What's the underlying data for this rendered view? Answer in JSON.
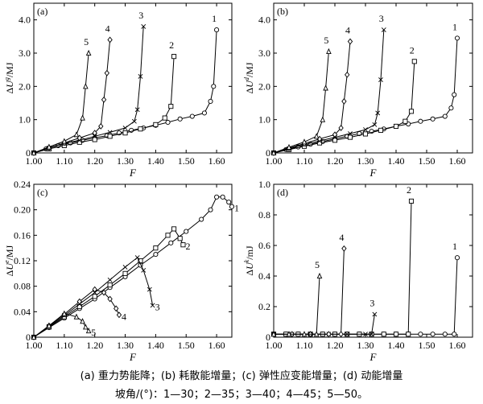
{
  "caption": {
    "line1": "(a) 重力势能降；(b) 耗散能增量；(c) 弹性应变能增量；(d) 动能增量",
    "line2": "坡角/(°)：1—30；2—35；3—40；4—45；5—50。"
  },
  "chart_data": [
    {
      "id": "a",
      "type": "line",
      "panel_label": "(a)",
      "xlabel": "F",
      "ylabel": "ΔU^g/MJ",
      "xlim": [
        1.0,
        1.65
      ],
      "ylim": [
        0,
        4.5
      ],
      "xticks": [
        "1.00",
        "1.10",
        "1.20",
        "1.30",
        "1.40",
        "1.50",
        "1.60"
      ],
      "yticks": [
        "0",
        "1.0",
        "2.0",
        "3.0",
        "4.0"
      ],
      "series": [
        {
          "name": "1",
          "marker": "circle",
          "x": [
            1.0,
            1.04,
            1.08,
            1.12,
            1.16,
            1.2,
            1.24,
            1.28,
            1.32,
            1.36,
            1.4,
            1.44,
            1.48,
            1.52,
            1.56,
            1.58,
            1.59,
            1.6
          ],
          "y": [
            0.0,
            0.12,
            0.22,
            0.3,
            0.38,
            0.45,
            0.52,
            0.6,
            0.68,
            0.75,
            0.83,
            0.92,
            1.02,
            1.1,
            1.2,
            1.55,
            2.0,
            3.7
          ]
        },
        {
          "name": "2",
          "marker": "square",
          "x": [
            1.0,
            1.05,
            1.1,
            1.15,
            1.2,
            1.25,
            1.3,
            1.35,
            1.4,
            1.43,
            1.45,
            1.46
          ],
          "y": [
            0.0,
            0.12,
            0.22,
            0.32,
            0.4,
            0.5,
            0.6,
            0.72,
            0.85,
            1.05,
            1.4,
            2.9
          ]
        },
        {
          "name": "3",
          "marker": "x",
          "x": [
            1.0,
            1.05,
            1.1,
            1.15,
            1.2,
            1.25,
            1.3,
            1.33,
            1.34,
            1.35,
            1.36
          ],
          "y": [
            0.0,
            0.15,
            0.28,
            0.38,
            0.5,
            0.62,
            0.75,
            0.95,
            1.3,
            2.3,
            3.8
          ]
        },
        {
          "name": "4",
          "marker": "diamond",
          "x": [
            1.0,
            1.05,
            1.1,
            1.15,
            1.2,
            1.22,
            1.23,
            1.24,
            1.25
          ],
          "y": [
            0.0,
            0.15,
            0.3,
            0.45,
            0.6,
            0.8,
            1.6,
            2.4,
            3.4
          ]
        },
        {
          "name": "5",
          "marker": "triangle",
          "x": [
            1.0,
            1.05,
            1.1,
            1.14,
            1.16,
            1.17,
            1.18
          ],
          "y": [
            0.0,
            0.18,
            0.35,
            0.55,
            1.05,
            2.0,
            3.0
          ]
        }
      ]
    },
    {
      "id": "b",
      "type": "line",
      "panel_label": "(b)",
      "xlabel": "F",
      "ylabel": "ΔU^d/MJ",
      "xlim": [
        1.0,
        1.65
      ],
      "ylim": [
        0,
        4.5
      ],
      "xticks": [
        "1.00",
        "1.10",
        "1.20",
        "1.30",
        "1.40",
        "1.50",
        "1.60"
      ],
      "yticks": [
        "0",
        "1.0",
        "2.0",
        "3.0",
        "4.0"
      ],
      "series": [
        {
          "name": "1",
          "marker": "circle",
          "x": [
            1.0,
            1.04,
            1.08,
            1.12,
            1.16,
            1.2,
            1.24,
            1.28,
            1.32,
            1.36,
            1.4,
            1.44,
            1.48,
            1.52,
            1.56,
            1.58,
            1.59,
            1.6
          ],
          "y": [
            0.0,
            0.1,
            0.18,
            0.26,
            0.34,
            0.42,
            0.5,
            0.58,
            0.65,
            0.72,
            0.8,
            0.87,
            0.95,
            1.02,
            1.1,
            1.35,
            1.75,
            3.45
          ]
        },
        {
          "name": "2",
          "marker": "square",
          "x": [
            1.0,
            1.05,
            1.1,
            1.15,
            1.2,
            1.25,
            1.3,
            1.35,
            1.4,
            1.43,
            1.45,
            1.46
          ],
          "y": [
            0.0,
            0.1,
            0.2,
            0.3,
            0.38,
            0.47,
            0.57,
            0.68,
            0.8,
            0.95,
            1.25,
            2.75
          ]
        },
        {
          "name": "3",
          "marker": "x",
          "x": [
            1.0,
            1.05,
            1.1,
            1.15,
            1.2,
            1.25,
            1.3,
            1.33,
            1.34,
            1.35,
            1.36
          ],
          "y": [
            0.0,
            0.13,
            0.25,
            0.36,
            0.47,
            0.58,
            0.7,
            0.85,
            1.2,
            2.2,
            3.7
          ]
        },
        {
          "name": "4",
          "marker": "diamond",
          "x": [
            1.0,
            1.05,
            1.1,
            1.15,
            1.2,
            1.22,
            1.23,
            1.24,
            1.25
          ],
          "y": [
            0.0,
            0.14,
            0.28,
            0.42,
            0.55,
            0.75,
            1.55,
            2.35,
            3.35
          ]
        },
        {
          "name": "5",
          "marker": "triangle",
          "x": [
            1.0,
            1.05,
            1.1,
            1.14,
            1.16,
            1.17,
            1.18
          ],
          "y": [
            0.0,
            0.17,
            0.33,
            0.5,
            1.0,
            1.95,
            3.05
          ]
        }
      ]
    },
    {
      "id": "c",
      "type": "line",
      "panel_label": "(c)",
      "xlabel": "F",
      "ylabel": "ΔU^e/MJ",
      "xlim": [
        1.0,
        1.65
      ],
      "ylim": [
        0,
        0.24
      ],
      "xticks": [
        "1.00",
        "1.10",
        "1.20",
        "1.30",
        "1.40",
        "1.50",
        "1.60"
      ],
      "yticks": [
        "0",
        "0.04",
        "0.08",
        "0.12",
        "0.16",
        "0.20",
        "0.24"
      ],
      "series": [
        {
          "name": "1",
          "marker": "circle",
          "x": [
            1.0,
            1.05,
            1.1,
            1.15,
            1.2,
            1.25,
            1.3,
            1.35,
            1.4,
            1.45,
            1.5,
            1.55,
            1.58,
            1.6,
            1.62,
            1.64,
            1.65
          ],
          "y": [
            0.0,
            0.015,
            0.03,
            0.045,
            0.06,
            0.078,
            0.095,
            0.113,
            0.13,
            0.148,
            0.166,
            0.185,
            0.2,
            0.22,
            0.22,
            0.212,
            0.205
          ]
        },
        {
          "name": "2",
          "marker": "square",
          "x": [
            1.0,
            1.05,
            1.1,
            1.15,
            1.2,
            1.25,
            1.3,
            1.35,
            1.4,
            1.44,
            1.46,
            1.48,
            1.49
          ],
          "y": [
            0.0,
            0.016,
            0.032,
            0.048,
            0.064,
            0.082,
            0.1,
            0.12,
            0.14,
            0.16,
            0.17,
            0.155,
            0.145
          ]
        },
        {
          "name": "3",
          "marker": "x",
          "x": [
            1.0,
            1.05,
            1.1,
            1.15,
            1.2,
            1.25,
            1.3,
            1.34,
            1.36,
            1.38,
            1.39
          ],
          "y": [
            0.0,
            0.017,
            0.034,
            0.052,
            0.07,
            0.09,
            0.11,
            0.125,
            0.105,
            0.075,
            0.05
          ]
        },
        {
          "name": "4",
          "marker": "diamond",
          "x": [
            1.0,
            1.05,
            1.1,
            1.15,
            1.2,
            1.23,
            1.25,
            1.27,
            1.28
          ],
          "y": [
            0.0,
            0.018,
            0.036,
            0.056,
            0.075,
            0.07,
            0.06,
            0.045,
            0.035
          ]
        },
        {
          "name": "5",
          "marker": "triangle",
          "x": [
            1.0,
            1.05,
            1.1,
            1.14,
            1.16,
            1.17,
            1.18
          ],
          "y": [
            0.0,
            0.018,
            0.037,
            0.032,
            0.025,
            0.016,
            0.01
          ]
        }
      ]
    },
    {
      "id": "d",
      "type": "line",
      "panel_label": "(d)",
      "xlabel": "F",
      "ylabel": "ΔU^k/mJ",
      "xlim": [
        1.0,
        1.65
      ],
      "ylim": [
        0,
        1.0
      ],
      "xticks": [
        "1.00",
        "1.10",
        "1.20",
        "1.30",
        "1.40",
        "1.50",
        "1.60"
      ],
      "yticks": [
        "0",
        "0.2",
        "0.4",
        "0.6",
        "0.8",
        "1.0"
      ],
      "series": [
        {
          "name": "1",
          "marker": "circle",
          "x": [
            1.0,
            1.04,
            1.08,
            1.12,
            1.16,
            1.2,
            1.24,
            1.28,
            1.32,
            1.36,
            1.4,
            1.44,
            1.48,
            1.52,
            1.56,
            1.59,
            1.6
          ],
          "y": [
            0.02,
            0.02,
            0.02,
            0.02,
            0.02,
            0.02,
            0.02,
            0.02,
            0.02,
            0.02,
            0.02,
            0.02,
            0.02,
            0.02,
            0.02,
            0.02,
            0.52
          ]
        },
        {
          "name": "2",
          "marker": "square",
          "x": [
            1.0,
            1.04,
            1.08,
            1.12,
            1.16,
            1.2,
            1.24,
            1.28,
            1.32,
            1.36,
            1.4,
            1.44,
            1.45
          ],
          "y": [
            0.02,
            0.02,
            0.02,
            0.02,
            0.02,
            0.02,
            0.02,
            0.02,
            0.02,
            0.02,
            0.02,
            0.02,
            0.89
          ]
        },
        {
          "name": "3",
          "marker": "x",
          "x": [
            1.0,
            1.06,
            1.12,
            1.18,
            1.24,
            1.3,
            1.32,
            1.33
          ],
          "y": [
            0.02,
            0.02,
            0.02,
            0.02,
            0.02,
            0.02,
            0.02,
            0.15
          ]
        },
        {
          "name": "4",
          "marker": "diamond",
          "x": [
            1.0,
            1.06,
            1.12,
            1.18,
            1.22,
            1.23
          ],
          "y": [
            0.02,
            0.02,
            0.02,
            0.02,
            0.02,
            0.58
          ]
        },
        {
          "name": "5",
          "marker": "triangle",
          "x": [
            1.0,
            1.05,
            1.1,
            1.14,
            1.15
          ],
          "y": [
            0.02,
            0.02,
            0.02,
            0.02,
            0.4
          ]
        }
      ]
    }
  ]
}
